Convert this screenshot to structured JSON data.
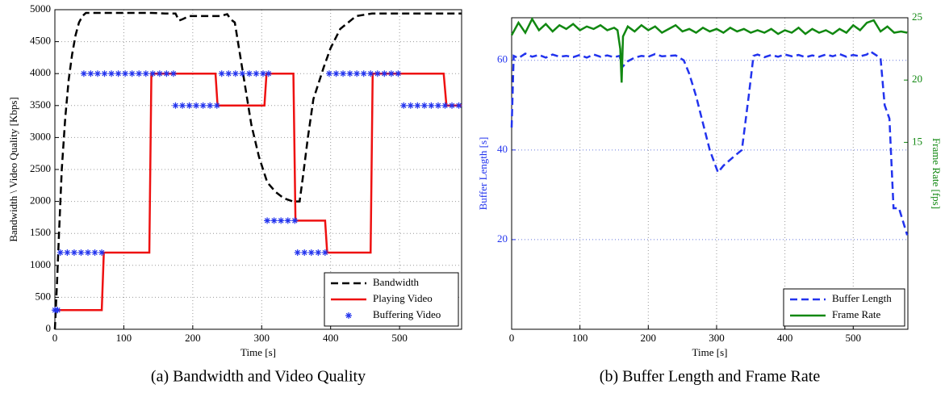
{
  "chart_data": [
    {
      "type": "line",
      "caption": "(a) Bandwidth and Video Quality",
      "xlabel": "Time [s]",
      "ylabel": "Bandwidth \\ Video Quality [Kbps]",
      "xlim": [
        0,
        590
      ],
      "xticks": [
        0,
        100,
        200,
        300,
        400,
        500
      ],
      "ylim": [
        0,
        5000
      ],
      "yticks": [
        0,
        500,
        1000,
        1500,
        2000,
        2500,
        3000,
        3500,
        4000,
        4500,
        5000
      ],
      "grid": true,
      "legend": "lower right",
      "series": [
        {
          "name": "Bandwidth",
          "color": "#000000",
          "line_style": "dashed",
          "x": [
            0,
            3,
            6,
            10,
            15,
            20,
            25,
            30,
            35,
            40,
            45,
            140,
            160,
            175,
            180,
            185,
            195,
            220,
            240,
            250,
            255,
            261,
            273,
            285,
            296,
            308,
            320,
            332,
            345,
            355,
            360,
            367,
            375,
            390,
            400,
            414,
            437,
            460,
            590
          ],
          "values": [
            0,
            700,
            1500,
            2500,
            3300,
            3900,
            4300,
            4600,
            4800,
            4900,
            4950,
            4950,
            4940,
            4940,
            4830,
            4850,
            4900,
            4900,
            4900,
            4930,
            4850,
            4800,
            4000,
            3200,
            2700,
            2300,
            2150,
            2050,
            2000,
            2000,
            2400,
            3000,
            3600,
            4100,
            4400,
            4700,
            4900,
            4940,
            4940
          ]
        },
        {
          "name": "Playing Video",
          "color": "#ee1111",
          "line_style": "solid",
          "x": [
            0,
            68,
            71,
            137,
            140,
            233,
            236,
            304,
            307,
            346,
            349,
            392,
            395,
            458,
            461,
            564,
            568,
            590
          ],
          "values": [
            300,
            300,
            1200,
            1200,
            4000,
            4000,
            3500,
            3500,
            4000,
            4000,
            1700,
            1700,
            1200,
            1200,
            4000,
            4000,
            3500,
            3500
          ]
        },
        {
          "name": "Buffering Video",
          "color": "#2233ee",
          "line_style": "none",
          "marker": "*",
          "x": [
            0,
            4,
            8,
            18,
            28,
            38,
            48,
            58,
            68,
            42,
            52,
            62,
            72,
            82,
            92,
            102,
            112,
            122,
            132,
            142,
            152,
            162,
            172,
            175,
            185,
            195,
            205,
            215,
            225,
            235,
            242,
            252,
            262,
            272,
            282,
            292,
            302,
            310,
            308,
            318,
            328,
            338,
            348,
            352,
            362,
            372,
            382,
            392,
            398,
            408,
            418,
            428,
            438,
            448,
            458,
            468,
            478,
            488,
            498,
            506,
            516,
            526,
            536,
            546,
            556,
            566,
            576,
            586
          ],
          "values": [
            300,
            300,
            1200,
            1200,
            1200,
            1200,
            1200,
            1200,
            1200,
            4000,
            4000,
            4000,
            4000,
            4000,
            4000,
            4000,
            4000,
            4000,
            4000,
            4000,
            4000,
            4000,
            4000,
            3500,
            3500,
            3500,
            3500,
            3500,
            3500,
            3500,
            4000,
            4000,
            4000,
            4000,
            4000,
            4000,
            4000,
            4000,
            1700,
            1700,
            1700,
            1700,
            1700,
            1200,
            1200,
            1200,
            1200,
            1200,
            4000,
            4000,
            4000,
            4000,
            4000,
            4000,
            4000,
            4000,
            4000,
            4000,
            4000,
            3500,
            3500,
            3500,
            3500,
            3500,
            3500,
            3500,
            3500,
            3500
          ]
        }
      ]
    },
    {
      "type": "line",
      "caption": "(b) Buffer Length and Frame Rate",
      "xlabel": "Time [s]",
      "ylabel": "Buffer Length [s]",
      "y2label": "Frame Rate [fps]",
      "xlim": [
        0,
        580
      ],
      "xticks": [
        0,
        100,
        200,
        300,
        400,
        500
      ],
      "ylim": [
        0,
        69.5
      ],
      "yticks": [
        20,
        40,
        60
      ],
      "y2lim": [
        0,
        25
      ],
      "y2ticks": [
        15,
        20,
        25
      ],
      "grid": true,
      "legend": "lower right",
      "series": [
        {
          "name": "Buffer Length",
          "color": "#2233ee",
          "line_style": "dashed",
          "x": [
            0,
            3,
            10,
            20,
            30,
            40,
            50,
            60,
            70,
            80,
            90,
            100,
            110,
            120,
            130,
            140,
            150,
            158,
            162,
            170,
            180,
            190,
            200,
            210,
            220,
            240,
            252,
            260,
            270,
            280,
            290,
            302,
            310,
            325,
            337,
            347,
            354,
            360,
            370,
            380,
            390,
            400,
            410,
            420,
            430,
            440,
            450,
            460,
            470,
            480,
            490,
            500,
            510,
            520,
            525,
            530,
            540,
            546,
            553,
            559,
            567,
            579
          ],
          "values": [
            45,
            61,
            60.5,
            61.5,
            60.8,
            61.2,
            60.6,
            61.3,
            60.8,
            61,
            60.7,
            61.2,
            60.6,
            61.3,
            60.8,
            61.1,
            60.7,
            61,
            58.5,
            59.8,
            60.6,
            61,
            60.8,
            61.4,
            60.9,
            61.1,
            60,
            57,
            52,
            46,
            40,
            35,
            36.5,
            38.5,
            40,
            52,
            61,
            61.3,
            60.7,
            61.2,
            60.8,
            61.3,
            60.9,
            61.2,
            60.7,
            61.1,
            60.8,
            61.3,
            60.9,
            61.4,
            60.8,
            61.2,
            60.9,
            61.3,
            62,
            61.5,
            60.5,
            50,
            47,
            27,
            27,
            21
          ]
        },
        {
          "name": "Frame Rate",
          "color": "#118811",
          "line_style": "solid",
          "axis": "y2",
          "x": [
            0,
            10,
            20,
            30,
            40,
            50,
            60,
            70,
            80,
            90,
            100,
            110,
            120,
            130,
            140,
            150,
            155,
            159,
            161,
            163,
            170,
            180,
            190,
            200,
            210,
            220,
            230,
            240,
            250,
            260,
            270,
            280,
            290,
            300,
            310,
            320,
            330,
            340,
            350,
            360,
            370,
            380,
            390,
            400,
            410,
            420,
            430,
            440,
            450,
            460,
            470,
            480,
            490,
            500,
            510,
            520,
            530,
            540,
            550,
            560,
            570,
            579
          ],
          "values": [
            23.6,
            24.6,
            23.8,
            24.9,
            24,
            24.5,
            23.9,
            24.4,
            24.1,
            24.5,
            24,
            24.3,
            24.1,
            24.4,
            24,
            24.2,
            24,
            22.5,
            19.8,
            23.5,
            24.3,
            23.9,
            24.4,
            24,
            24.3,
            23.8,
            24.1,
            24.4,
            23.9,
            24.1,
            23.8,
            24.2,
            23.9,
            24.1,
            23.8,
            24.2,
            23.9,
            24.1,
            23.8,
            24,
            23.8,
            24.1,
            23.7,
            24,
            23.8,
            24.2,
            23.7,
            24.1,
            23.8,
            24,
            23.7,
            24.1,
            23.8,
            24.4,
            24,
            24.6,
            24.8,
            23.9,
            24.3,
            23.8,
            23.9,
            23.8
          ]
        }
      ]
    }
  ]
}
